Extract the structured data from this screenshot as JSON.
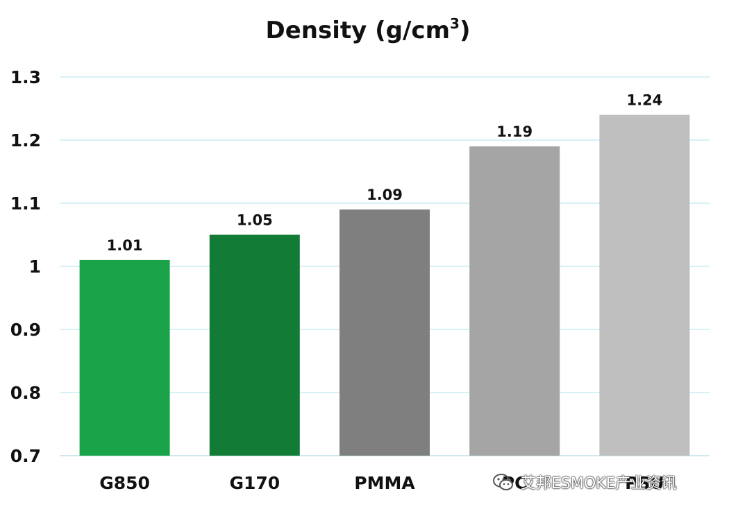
{
  "chart_data": {
    "type": "bar",
    "title": "Density (g/cm",
    "title_sup": "3",
    "title_end": ")",
    "categories": [
      "G850",
      "G170",
      "PMMA",
      "PC",
      "PSU"
    ],
    "values": [
      1.01,
      1.05,
      1.09,
      1.19,
      1.24
    ],
    "value_labels": [
      "1.01",
      "1.05",
      "1.09",
      "1.19",
      "1.24"
    ],
    "bar_colors": [
      "#1ba34a",
      "#127c36",
      "#7f7f7f",
      "#a5a5a5",
      "#bfbfbf"
    ],
    "ylim": [
      0.7,
      1.3
    ],
    "yticks": [
      1.3,
      1.2,
      1.1,
      1.0,
      0.9,
      0.8,
      0.7
    ],
    "ytick_labels": [
      "1.3",
      "1.2",
      "1.1",
      "1",
      "0.9",
      "0.8",
      "0.7"
    ],
    "xlabel": "",
    "ylabel": "",
    "grid": true,
    "grid_color": "#d8f0f7",
    "axis_color": "#cfe8f0",
    "legend": "none"
  },
  "watermark": {
    "text": "艾邦ESMOKE产业资讯",
    "icon": "wechat-icon"
  }
}
